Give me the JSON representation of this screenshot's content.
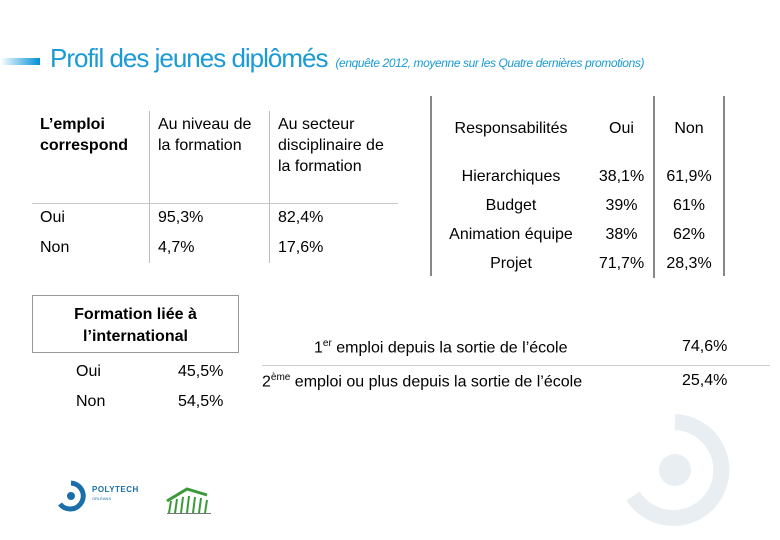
{
  "title": {
    "main": "Profil des jeunes diplômés",
    "sub": "(enquête 2012, moyenne sur les Quatre dernières promotions)"
  },
  "table_formation": {
    "headers": [
      "L’emploi correspond",
      "Au niveau de la formation",
      "Au secteur disciplinaire de la formation"
    ],
    "rows": [
      [
        "Oui",
        "95,3%",
        "82,4%"
      ],
      [
        "Non",
        "4,7%",
        "17,6%"
      ]
    ]
  },
  "table_responsabilites": {
    "headers": [
      "Responsabilités",
      "Oui",
      "Non"
    ],
    "rows": [
      [
        "Hierarchiques",
        "38,1%",
        "61,9%"
      ],
      [
        "Budget",
        "39%",
        "61%"
      ],
      [
        "Animation équipe",
        "38%",
        "62%"
      ],
      [
        "Projet",
        "71,7%",
        "28,3%"
      ]
    ]
  },
  "table_international": {
    "header": "Formation liée à l’international",
    "rows": [
      [
        "Oui",
        "45,5%"
      ],
      [
        "Non",
        "54,5%"
      ]
    ]
  },
  "table_emploi": {
    "rows": [
      {
        "num": "1",
        "sup": "er",
        "text": " emploi depuis la sortie de l’école",
        "value": "74,6%"
      },
      {
        "num": "2",
        "sup": "ème",
        "text": " emploi ou plus depuis la sortie de l’école",
        "value": "25,4%"
      }
    ]
  },
  "logos": {
    "polytech": "POLYTECH",
    "polytech_sub": "ORLÉANS",
    "colors": {
      "title_blue": "#1a9ad6",
      "polytech_blue": "#1b6fa8",
      "green": "#3a9a3a"
    }
  }
}
